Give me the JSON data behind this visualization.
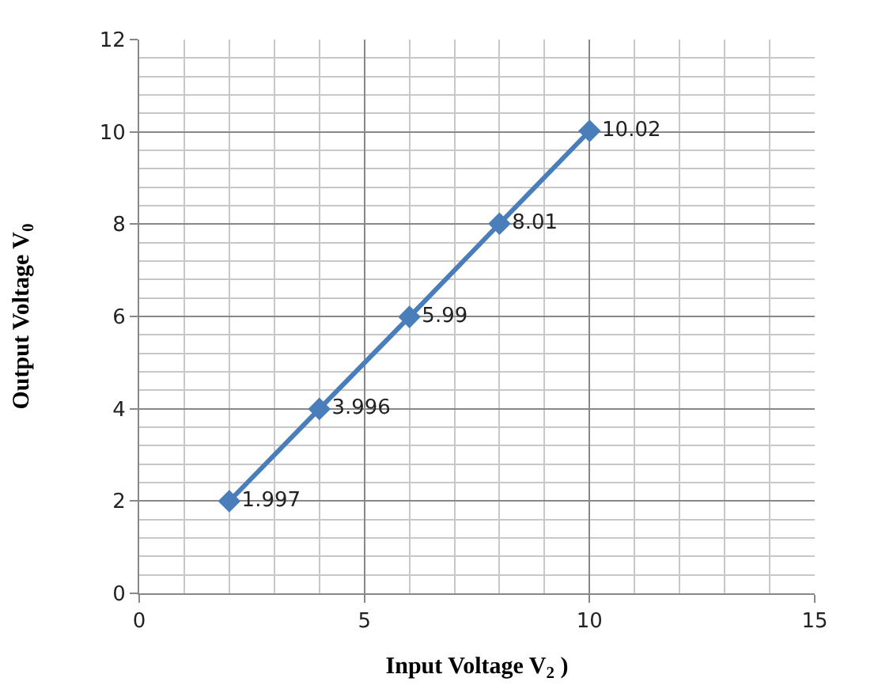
{
  "chart_data": {
    "type": "line",
    "xlabel": "Input Voltage V$_{2}$ )",
    "ylabel": "Output Voltage V$_{0}$",
    "x": [
      2,
      4,
      6,
      8,
      10
    ],
    "series": [
      {
        "color": "#4a7ebb",
        "values": [
          1.997,
          3.996,
          5.99,
          8.01,
          10.02
        ]
      }
    ],
    "xlim": [
      0,
      15
    ],
    "xticks": [
      0,
      5,
      10,
      15
    ],
    "ylim": [
      0,
      12
    ],
    "yticks": [
      0,
      2,
      4,
      6,
      8,
      10,
      12
    ],
    "grid": true,
    "marker": "diamond",
    "line_style": "solid",
    "data_labels": true
  }
}
